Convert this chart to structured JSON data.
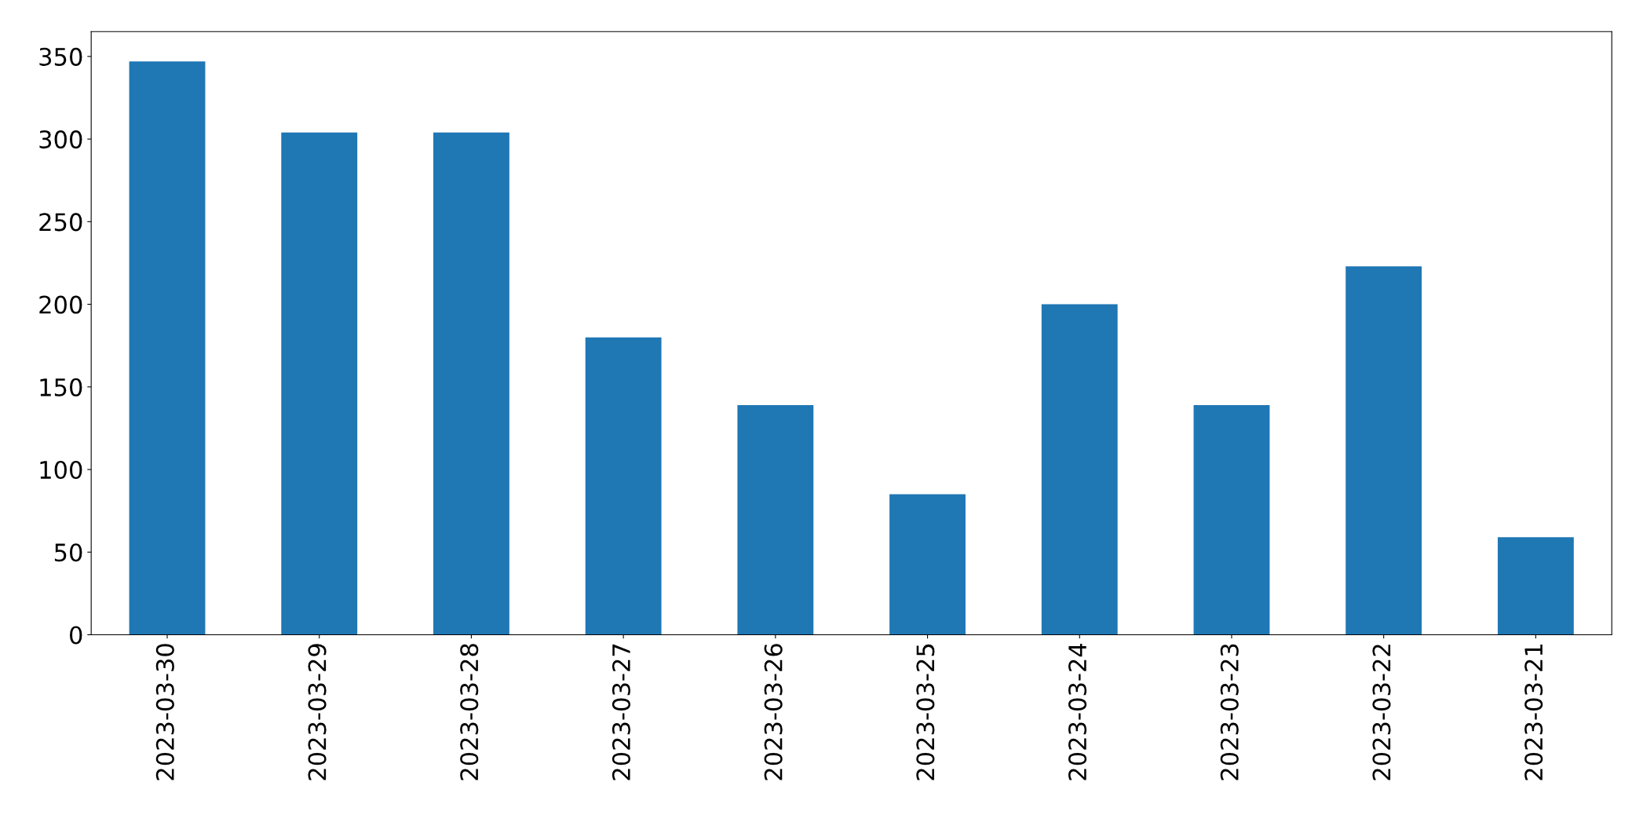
{
  "chart_data": {
    "type": "bar",
    "categories": [
      "2023-03-30",
      "2023-03-29",
      "2023-03-28",
      "2023-03-27",
      "2023-03-26",
      "2023-03-25",
      "2023-03-24",
      "2023-03-23",
      "2023-03-22",
      "2023-03-21"
    ],
    "values": [
      347,
      304,
      304,
      180,
      139,
      85,
      200,
      139,
      223,
      59
    ],
    "color": "#1f77b4",
    "ylim": [
      0,
      365
    ],
    "yticks": [
      0,
      50,
      100,
      150,
      200,
      250,
      300,
      350
    ],
    "grid": false,
    "legend": false
  }
}
